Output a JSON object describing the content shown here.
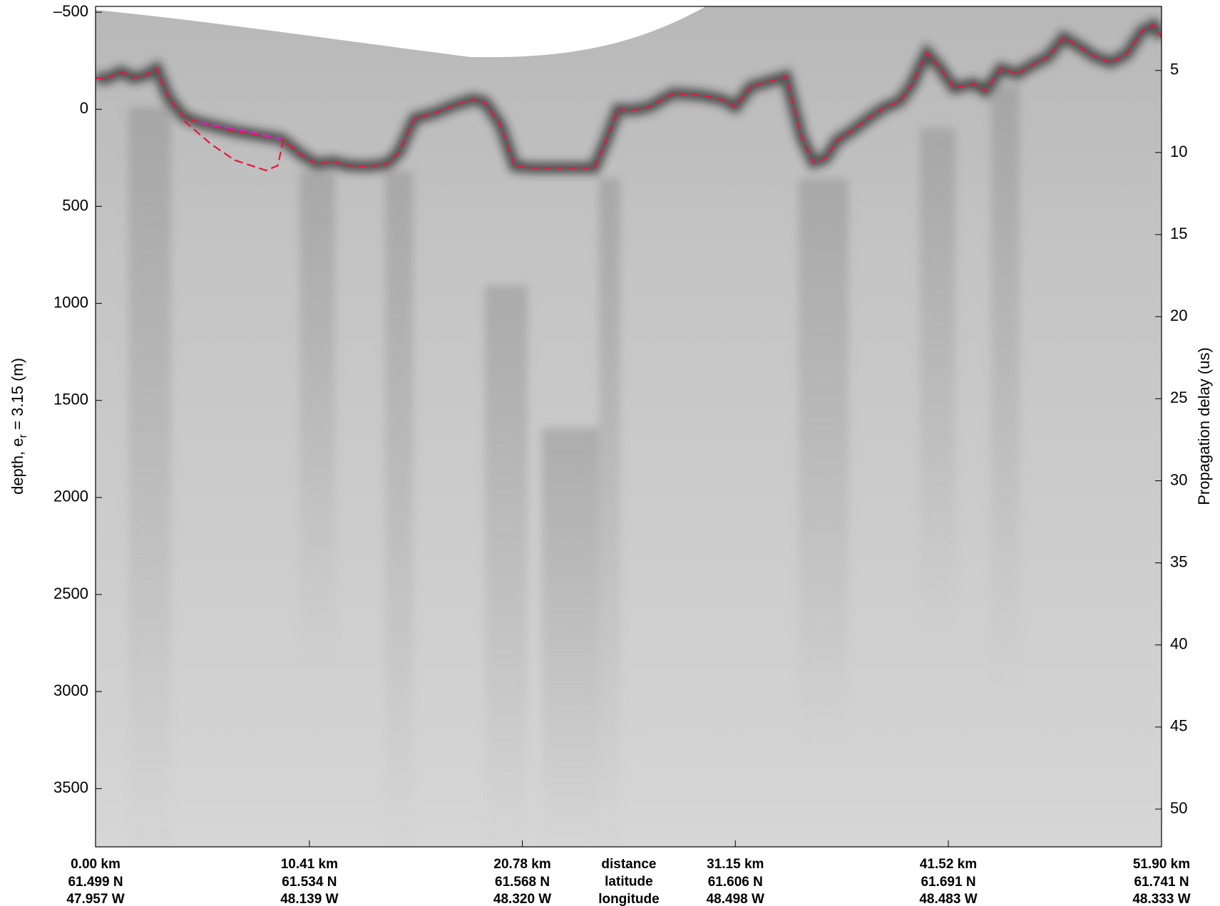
{
  "chart_data": {
    "type": "line",
    "ylabel_parts": [
      "depth, e",
      "r",
      " = 3.15 (m)"
    ],
    "y2label": "Propagation delay (us)",
    "xlim": [
      0,
      51.9
    ],
    "ylim": [
      3800,
      -530
    ],
    "y2lim": [
      52.3,
      1.1
    ],
    "xticks": [
      {
        "value": 0,
        "label": "0.00 km"
      },
      {
        "value": 10.41,
        "label": "10.41 km"
      },
      {
        "value": 20.78,
        "label": "20.78 km"
      },
      {
        "value": 31.15,
        "label": "31.15 km"
      },
      {
        "value": 41.52,
        "label": "41.52 km"
      },
      {
        "value": 51.9,
        "label": "51.90 km"
      }
    ],
    "latitude_labels": [
      "61.499 N",
      "61.534 N",
      "61.568 N",
      "61.606 N",
      "61.691 N",
      "61.741 N"
    ],
    "longitude_labels": [
      "47.957 W",
      "48.139 W",
      "48.320 W",
      "48.498 W",
      "48.483 W",
      "48.333 W"
    ],
    "row_labels": [
      "distance",
      "latitude",
      "longitude"
    ],
    "yticks": [
      {
        "value": -500,
        "label": "–500"
      },
      0,
      500,
      1000,
      1500,
      2000,
      2500,
      3000,
      3500
    ],
    "y2ticks": [
      5,
      10,
      15,
      20,
      25,
      30,
      35,
      40,
      45,
      50
    ],
    "series": [
      {
        "color": "#e8183c",
        "x": [
          0.0,
          0.5,
          1.26,
          1.83,
          2.4,
          2.97,
          3.55,
          4.31,
          5.06,
          6.78,
          9.06,
          10.02,
          10.78,
          11.54,
          12.3,
          13.25,
          14.2,
          14.77,
          15.53,
          16.49,
          17.44,
          18.39,
          18.96,
          19.72,
          20.41,
          21.25,
          24.29,
          24.86,
          25.44,
          26.2,
          26.96,
          28.1,
          28.86,
          29.63,
          30.58,
          31.15,
          31.91,
          32.86,
          33.62,
          34.38,
          34.96,
          35.53,
          36.1,
          36.86,
          37.62,
          38.38,
          39.14,
          39.71,
          40.48,
          41.05,
          41.81,
          42.76,
          43.33,
          44.09,
          44.86,
          45.62,
          46.38,
          47.14,
          47.9,
          48.66,
          49.43,
          50.19,
          50.95,
          51.52,
          51.9
        ],
        "values": [
          -161,
          -157,
          -194,
          -161,
          -173,
          -210,
          -60,
          40,
          69,
          113,
          153,
          234,
          282,
          270,
          290,
          294,
          282,
          222,
          48,
          20,
          -20,
          -52,
          -36,
          81,
          294,
          302,
          302,
          161,
          0,
          4,
          -12,
          -81,
          -77,
          -69,
          -48,
          -12,
          -117,
          -145,
          -169,
          145,
          274,
          254,
          161,
          109,
          48,
          -8,
          -40,
          -121,
          -290,
          -222,
          -109,
          -133,
          -93,
          -210,
          -181,
          -230,
          -270,
          -371,
          -323,
          -270,
          -242,
          -282,
          -403,
          -435,
          -371
        ]
      },
      {
        "color": "#d026d8",
        "x": [
          5.06,
          6.78,
          9.06
        ],
        "values": [
          69,
          101,
          153
        ]
      },
      {
        "color": "#e8183c",
        "x": [
          4.31,
          5.64,
          6.78,
          8.3,
          8.87,
          9.14
        ],
        "values": [
          60,
          181,
          262,
          315,
          290,
          161
        ]
      }
    ]
  }
}
